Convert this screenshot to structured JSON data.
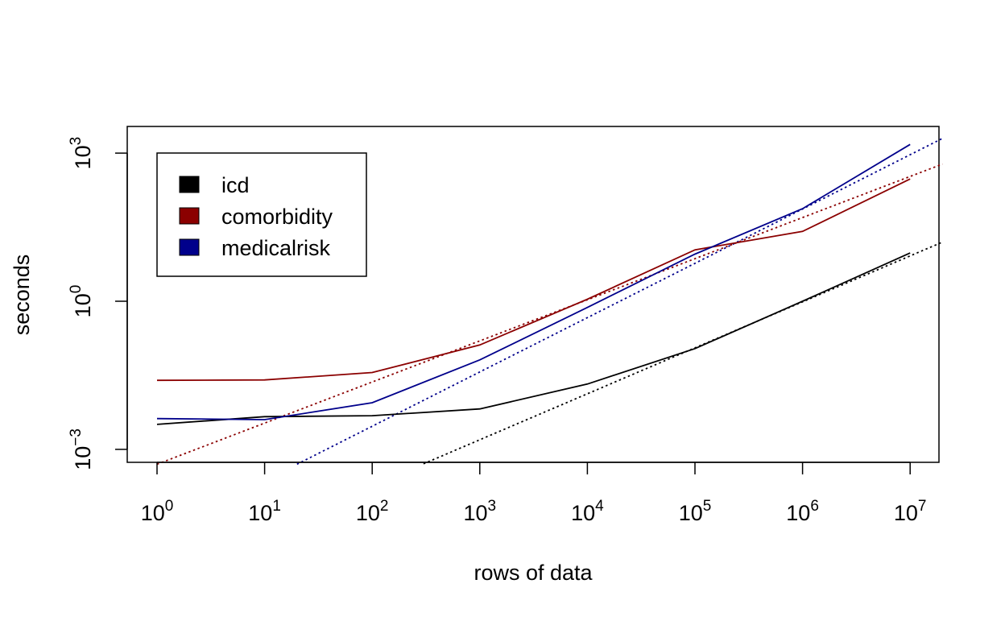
{
  "chart_data": {
    "type": "line",
    "title": "",
    "xlabel": "rows of data",
    "ylabel": "seconds",
    "x_scale": "log10",
    "y_scale": "log10",
    "xlim": [
      1,
      20000000
    ],
    "ylim": [
      0.0005,
      2000
    ],
    "x_ticks": [
      {
        "value": 1,
        "base": "10",
        "exp": "0"
      },
      {
        "value": 10,
        "base": "10",
        "exp": "1"
      },
      {
        "value": 100,
        "base": "10",
        "exp": "2"
      },
      {
        "value": 1000,
        "base": "10",
        "exp": "3"
      },
      {
        "value": 10000,
        "base": "10",
        "exp": "4"
      },
      {
        "value": 100000,
        "base": "10",
        "exp": "5"
      },
      {
        "value": 1000000,
        "base": "10",
        "exp": "6"
      },
      {
        "value": 10000000,
        "base": "10",
        "exp": "7"
      }
    ],
    "y_ticks": [
      {
        "value": 0.001,
        "base": "10",
        "exp": "−3"
      },
      {
        "value": 1,
        "base": "10",
        "exp": "0"
      },
      {
        "value": 1000,
        "base": "10",
        "exp": "3"
      }
    ],
    "grid": false,
    "legend_position": "top-left",
    "x": [
      1,
      10,
      100,
      1000,
      10000,
      100000,
      1000000,
      10000000
    ],
    "series": [
      {
        "name": "icd",
        "color": "#000000",
        "values": [
          0.0032,
          0.0046,
          0.0048,
          0.0066,
          0.021,
          0.11,
          1.0,
          9.5
        ],
        "fit_line": {
          "x": [
            300,
            20000000
          ],
          "y": [
            0.00051,
            15.8
          ]
        }
      },
      {
        "name": "comorbidity",
        "color": "#8b0000",
        "values": [
          0.025,
          0.0255,
          0.036,
          0.13,
          1.1,
          11.0,
          26.0,
          300.0
        ],
        "fit_line": {
          "x": [
            1,
            20000000
          ],
          "y": [
            0.0005,
            600
          ]
        }
      },
      {
        "name": "medicalrisk",
        "color": "#00008b",
        "values": [
          0.0042,
          0.004,
          0.0088,
          0.065,
          0.75,
          9.0,
          75.0,
          1500.0
        ],
        "fit_line": {
          "x": [
            20,
            20000000
          ],
          "y": [
            0.0005,
            1990
          ]
        }
      }
    ]
  }
}
